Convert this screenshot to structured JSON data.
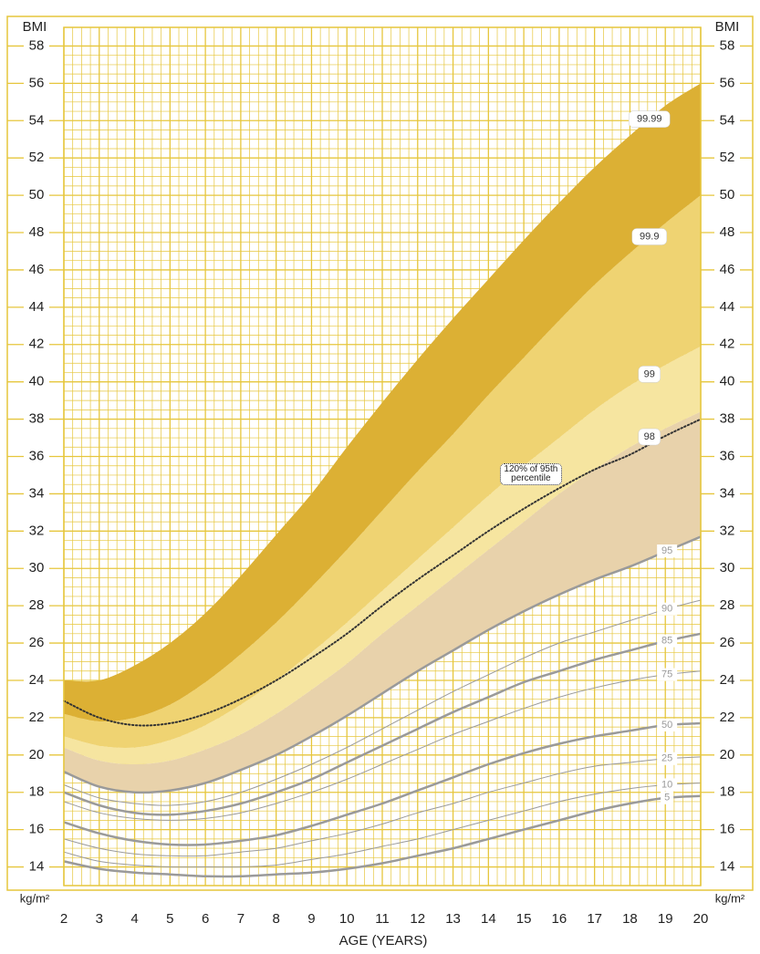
{
  "chart_data": {
    "type": "line",
    "x_label": "AGE (YEARS)",
    "y_label": "BMI",
    "y_unit": "kg/m²",
    "x": [
      2,
      3,
      4,
      5,
      6,
      7,
      8,
      9,
      10,
      11,
      12,
      13,
      14,
      15,
      16,
      17,
      18,
      19,
      20
    ],
    "xlim": [
      2,
      20
    ],
    "xticks": [
      2,
      3,
      4,
      5,
      6,
      7,
      8,
      9,
      10,
      11,
      12,
      13,
      14,
      15,
      16,
      17,
      18,
      19,
      20
    ],
    "ylim": [
      13,
      59
    ],
    "yticks": [
      14,
      16,
      18,
      20,
      22,
      24,
      26,
      28,
      30,
      32,
      34,
      36,
      38,
      40,
      42,
      44,
      46,
      48,
      50,
      52,
      54,
      56,
      58
    ],
    "grid": true,
    "grid_color": "#e6c63c",
    "series": [
      {
        "name": "5",
        "color": "#9a9a9a",
        "width": 2.5,
        "values": [
          14.3,
          13.9,
          13.7,
          13.6,
          13.5,
          13.5,
          13.6,
          13.7,
          13.9,
          14.2,
          14.6,
          15.0,
          15.5,
          16.0,
          16.5,
          17.0,
          17.4,
          17.7,
          17.8
        ]
      },
      {
        "name": "10",
        "color": "#9a9a9a",
        "width": 1,
        "values": [
          14.8,
          14.3,
          14.1,
          14.0,
          14.0,
          14.0,
          14.1,
          14.4,
          14.7,
          15.1,
          15.5,
          16.0,
          16.5,
          17.0,
          17.5,
          17.9,
          18.2,
          18.4,
          18.5
        ]
      },
      {
        "name": "25",
        "color": "#9a9a9a",
        "width": 1,
        "values": [
          15.5,
          15.0,
          14.7,
          14.6,
          14.6,
          14.8,
          15.0,
          15.4,
          15.8,
          16.3,
          16.9,
          17.4,
          18.0,
          18.5,
          19.0,
          19.4,
          19.6,
          19.8,
          19.9
        ]
      },
      {
        "name": "50",
        "color": "#9a9a9a",
        "width": 2.5,
        "values": [
          16.4,
          15.8,
          15.4,
          15.2,
          15.2,
          15.4,
          15.7,
          16.2,
          16.8,
          17.4,
          18.1,
          18.8,
          19.5,
          20.1,
          20.6,
          21.0,
          21.3,
          21.6,
          21.7
        ]
      },
      {
        "name": "75",
        "color": "#9a9a9a",
        "width": 1,
        "values": [
          17.5,
          16.9,
          16.6,
          16.5,
          16.6,
          16.9,
          17.4,
          18.0,
          18.7,
          19.5,
          20.3,
          21.1,
          21.8,
          22.5,
          23.1,
          23.6,
          24.0,
          24.3,
          24.5
        ]
      },
      {
        "name": "85",
        "color": "#9a9a9a",
        "width": 2.5,
        "values": [
          18.0,
          17.3,
          16.9,
          16.8,
          17.0,
          17.4,
          18.0,
          18.7,
          19.6,
          20.5,
          21.4,
          22.3,
          23.1,
          23.9,
          24.5,
          25.1,
          25.6,
          26.1,
          26.5
        ]
      },
      {
        "name": "90",
        "color": "#9a9a9a",
        "width": 1,
        "values": [
          18.4,
          17.7,
          17.4,
          17.3,
          17.5,
          18.0,
          18.7,
          19.5,
          20.4,
          21.4,
          22.4,
          23.4,
          24.3,
          25.2,
          26.0,
          26.6,
          27.2,
          27.8,
          28.3
        ]
      },
      {
        "name": "95",
        "color": "#9a9a9a",
        "width": 2.5,
        "values": [
          19.1,
          18.3,
          18.0,
          18.1,
          18.5,
          19.2,
          20.0,
          21.0,
          22.1,
          23.3,
          24.5,
          25.6,
          26.7,
          27.7,
          28.6,
          29.4,
          30.1,
          30.9,
          31.7
        ]
      },
      {
        "name": "98",
        "color": "#333333",
        "width": 0,
        "fill": "#e8d2ab",
        "values": [
          20.4,
          19.7,
          19.5,
          19.7,
          20.3,
          21.1,
          22.2,
          23.5,
          24.9,
          26.5,
          28.0,
          29.5,
          31.0,
          32.5,
          34.0,
          35.3,
          36.5,
          37.5,
          38.4
        ]
      },
      {
        "name": "99",
        "color": "#333333",
        "width": 0,
        "fill": "#f6e5a0",
        "values": [
          21.0,
          20.5,
          20.4,
          20.8,
          21.6,
          22.7,
          24.0,
          25.5,
          27.1,
          28.8,
          30.5,
          32.2,
          33.9,
          35.5,
          37.0,
          38.5,
          39.8,
          40.9,
          41.9
        ]
      },
      {
        "name": "99.9",
        "color": "#333333",
        "width": 0,
        "fill": "#efd372",
        "values": [
          22.2,
          21.8,
          22.0,
          22.7,
          23.9,
          25.4,
          27.1,
          29.0,
          31.0,
          33.1,
          35.2,
          37.2,
          39.3,
          41.3,
          43.3,
          45.2,
          46.9,
          48.5,
          50.0
        ]
      },
      {
        "name": "99.99",
        "color": "#333333",
        "width": 0,
        "fill": "#dcb034",
        "values": [
          24.0,
          24.0,
          24.8,
          26.0,
          27.6,
          29.6,
          31.8,
          34.0,
          36.5,
          38.9,
          41.2,
          43.4,
          45.5,
          47.6,
          49.6,
          51.5,
          53.2,
          54.8,
          56.0
        ]
      },
      {
        "name": "120% of 95th percentile",
        "color": "#333333",
        "width": 2,
        "dash": true,
        "values": [
          22.9,
          22.0,
          21.6,
          21.7,
          22.2,
          23.0,
          24.0,
          25.2,
          26.5,
          28.0,
          29.4,
          30.7,
          32.0,
          33.2,
          34.3,
          35.3,
          36.1,
          37.1,
          38.0
        ]
      }
    ]
  }
}
